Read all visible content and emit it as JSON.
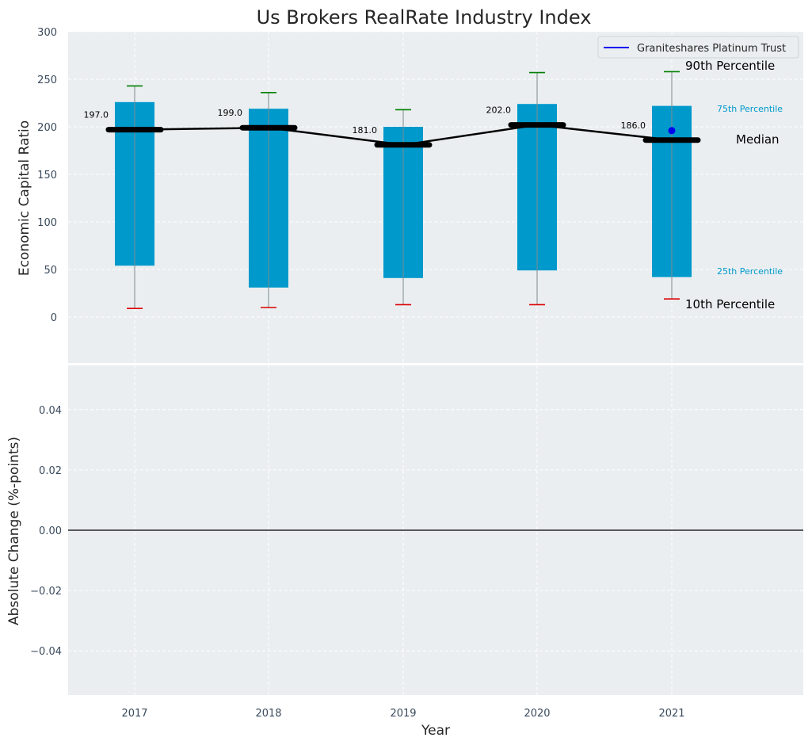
{
  "chart_data": [
    {
      "type": "bar",
      "title": "Us Brokers RealRate Industry Index",
      "xlabel": "",
      "ylabel": "Economic Capital Ratio",
      "ylim": [
        -45,
        300
      ],
      "yticks": [
        "0",
        "50",
        "100",
        "150",
        "200",
        "250",
        "300"
      ],
      "categories": [
        "2017",
        "2018",
        "2019",
        "2020",
        "2021"
      ],
      "series": [
        {
          "name": "p10",
          "values": [
            9,
            10,
            13,
            13,
            19
          ]
        },
        {
          "name": "p25",
          "values": [
            54,
            31,
            41,
            49,
            42
          ]
        },
        {
          "name": "median",
          "values": [
            197.0,
            199.0,
            181.0,
            202.0,
            186.0
          ]
        },
        {
          "name": "p75",
          "values": [
            226,
            219,
            200,
            224,
            222
          ]
        },
        {
          "name": "p90",
          "values": [
            243,
            236,
            218,
            257,
            258
          ]
        },
        {
          "name": "Graniteshares Platinum Trust",
          "values": [
            null,
            null,
            null,
            null,
            196
          ]
        }
      ],
      "median_labels": [
        "197.0",
        "199.0",
        "181.0",
        "202.0",
        "186.0"
      ],
      "annotations": {
        "p90": "90th Percentile",
        "p75": "75th Percentile",
        "median": "Median",
        "p25": "25th Percentile",
        "p10": "10th Percentile"
      },
      "legend": {
        "label": "Graniteshares Platinum Trust",
        "position": "top-right"
      },
      "grid": true,
      "colors": {
        "box": "#0099cc",
        "p90_cap": "#008000",
        "p10_cap": "#dd0000",
        "median": "#000000",
        "company": "#0000ee",
        "background": "#eaeef0"
      }
    },
    {
      "type": "line",
      "title": "",
      "xlabel": "Year",
      "ylabel": "Absolute Change (%-points)",
      "ylim": [
        -0.055,
        0.055
      ],
      "yticks": [
        "−0.04",
        "−0.02",
        "0.00",
        "0.02",
        "0.04"
      ],
      "categories": [
        "2017",
        "2018",
        "2019",
        "2020",
        "2021"
      ],
      "series": [],
      "reference_line": 0,
      "grid": true
    }
  ]
}
